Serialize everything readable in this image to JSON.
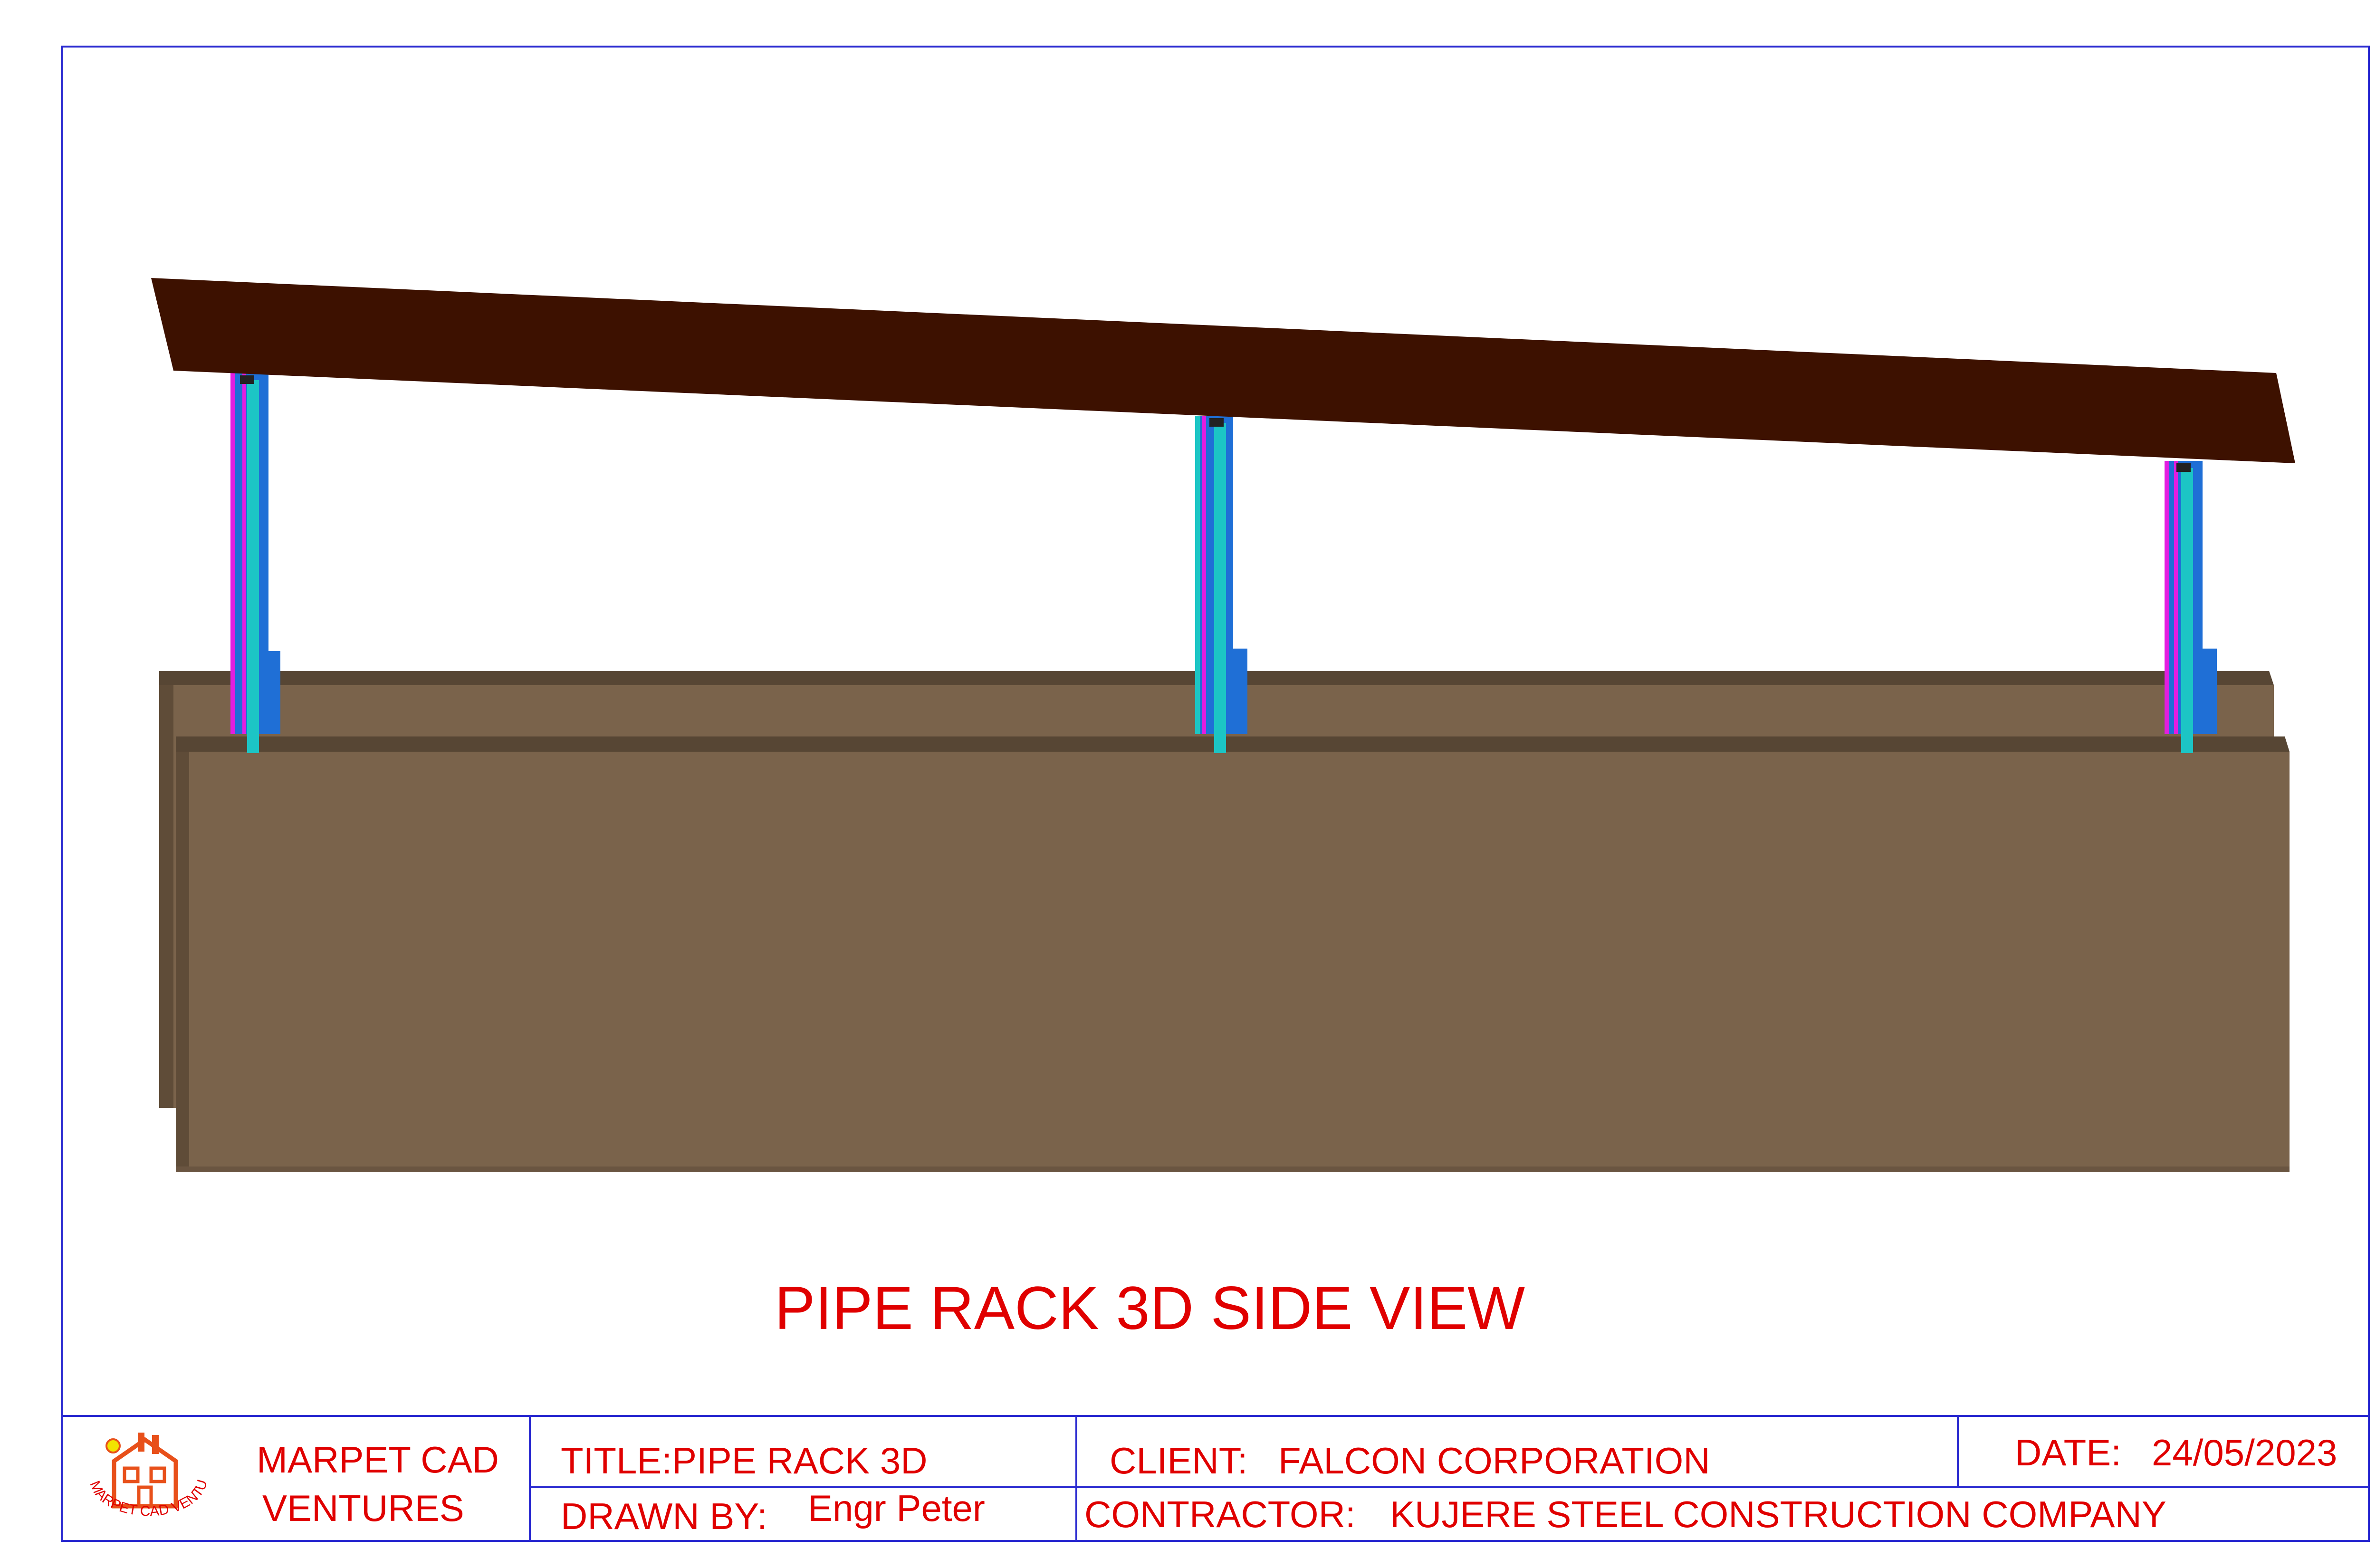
{
  "drawing": {
    "view_title": "PIPE RACK 3D SIDE VIEW",
    "colors": {
      "border": "#2a2ad0",
      "roof": "#3d1100",
      "ground": "#7a634b",
      "ground_top": "#574634",
      "ground_shadow": "#5f4c38",
      "column_blue": "#1f6fd6",
      "column_magenta": "#e21ee0",
      "column_cyan": "#1cc5c5",
      "text_red": "#e00000",
      "logo_orange": "#e8501a",
      "logo_yellow": "#f2e200"
    }
  },
  "title_block": {
    "company_line1": "MARPET CAD",
    "company_line2": "VENTURES",
    "logo_ring_text": "MARPET CAD VENTURES",
    "title": "TITLE:PIPE RACK 3D",
    "drawn_by_label": "DRAWN BY:",
    "drawn_by_value": "Engr Peter",
    "client_label": "CLIENT:",
    "client_value": "FALCON CORPORATION",
    "date_label": "DATE:",
    "date_value": "24/05/2023",
    "contractor_label": "CONTRACTOR:",
    "contractor_value": "KUJERE STEEL CONSTRUCTION COMPANY"
  }
}
